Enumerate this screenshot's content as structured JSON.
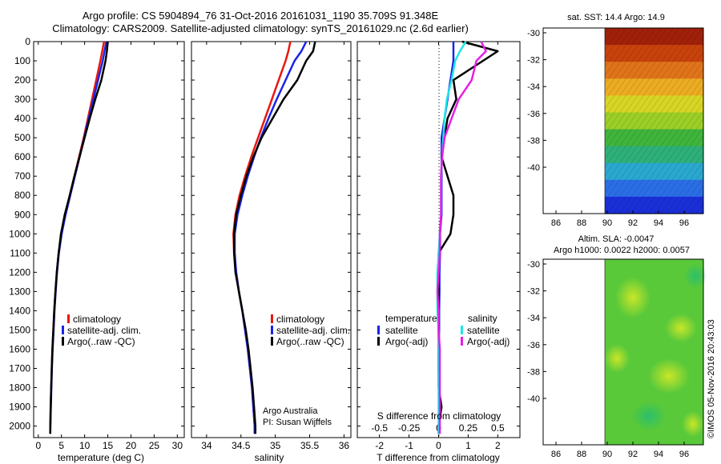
{
  "header": {
    "line1": "Argo profile: CS 5904894_76 31-Oct-2016 20161031_1190 35.709S 91.348E",
    "line2": "Climatology: CARS2009. Satellite-adjusted climatology: synTS_20161029.nc (2.6d earlier)"
  },
  "colors": {
    "climatology": "#e8170f",
    "satellite": "#1a24e8",
    "argo": "#000000",
    "salinity_sat": "#1ee6e6",
    "salinity_argo": "#e61ee6"
  },
  "legend": {
    "climatology": "climatology",
    "satellite_adj": "satellite-adj. clim.",
    "argo_raw": "Argo(..raw -QC)",
    "temperature_hdr": "temperature",
    "salinity_hdr": "salinity",
    "satellite": "satellite",
    "argo_adj": "Argo(-adj)"
  },
  "annotations": {
    "argo_australia": "Argo Australia",
    "pi": "PI: Susan Wijffels",
    "s_diff_label": "S difference from climatology",
    "stamp": "©IMOS 05-Nov-2016 20:43:03"
  },
  "maps": {
    "sst_title": "sat. SST: 14.4 Argo: 14.9",
    "sla_title1": "Altim. SLA: -0.0047",
    "sla_title2": "Argo h1000: 0.0022 h2000: 0.0057",
    "lat_ticks": [
      "-30",
      "-32",
      "-34",
      "-36",
      "-38",
      "-40"
    ],
    "lon_ticks": [
      "86",
      "88",
      "90",
      "92",
      "94",
      "96"
    ]
  },
  "chart_data": [
    {
      "type": "line",
      "title": "",
      "xlabel": "temperature (deg C)",
      "ylabel": "",
      "xlim": [
        -1,
        31.5
      ],
      "ylim": [
        2060,
        0
      ],
      "xticks": [
        "0",
        "5",
        "10",
        "15",
        "20",
        "25",
        "30"
      ],
      "yticks": [
        "0",
        "100",
        "200",
        "300",
        "400",
        "500",
        "600",
        "700",
        "800",
        "900",
        "1000",
        "1100",
        "1200",
        "1300",
        "1400",
        "1500",
        "1600",
        "1700",
        "1800",
        "1900",
        "2000"
      ],
      "depth": [
        0,
        50,
        100,
        200,
        300,
        400,
        500,
        600,
        700,
        800,
        900,
        1000,
        1100,
        1200,
        1300,
        1400,
        1500,
        1600,
        1700,
        1800,
        1900,
        2000,
        2040
      ],
      "series": [
        {
          "name": "climatology",
          "values": [
            14.2,
            13.8,
            13.4,
            12.5,
            11.6,
            10.7,
            9.8,
            8.8,
            7.8,
            6.8,
            5.8,
            5.0,
            4.4,
            4.0,
            3.7,
            3.45,
            3.25,
            3.05,
            2.9,
            2.78,
            2.68,
            2.6,
            2.58
          ]
        },
        {
          "name": "satellite-adj. clim.",
          "values": [
            14.7,
            14.3,
            13.9,
            12.9,
            11.9,
            10.9,
            9.9,
            8.9,
            7.9,
            6.9,
            5.9,
            5.05,
            4.45,
            4.05,
            3.75,
            3.5,
            3.3,
            3.1,
            2.95,
            2.82,
            2.72,
            2.62,
            2.6
          ]
        },
        {
          "name": "Argo(..raw -QC)",
          "values": [
            15.0,
            14.8,
            14.5,
            13.6,
            12.3,
            11.1,
            10.0,
            8.9,
            7.8,
            6.8,
            5.7,
            4.9,
            4.4,
            4.0,
            3.7,
            3.45,
            3.25,
            3.05,
            2.9,
            2.78,
            2.67,
            2.6,
            2.58
          ]
        }
      ]
    },
    {
      "type": "line",
      "title": "",
      "xlabel": "salinity",
      "ylabel": "",
      "xlim": [
        33.78,
        36.1
      ],
      "ylim": [
        2060,
        0
      ],
      "xticks": [
        "34",
        "34.5",
        "35",
        "35.5",
        "36"
      ],
      "depth": [
        0,
        50,
        100,
        200,
        300,
        400,
        500,
        600,
        700,
        800,
        900,
        1000,
        1100,
        1200,
        1300,
        1400,
        1500,
        1600,
        1700,
        1800,
        1900,
        2000,
        2040
      ],
      "series": [
        {
          "name": "climatology",
          "values": [
            35.22,
            35.19,
            35.15,
            35.05,
            34.95,
            34.85,
            34.75,
            34.65,
            34.56,
            34.48,
            34.42,
            34.39,
            34.4,
            34.43,
            34.47,
            34.52,
            34.56,
            34.6,
            34.63,
            34.66,
            34.68,
            34.7,
            34.7
          ]
        },
        {
          "name": "satellite-adj. clim.",
          "values": [
            35.45,
            35.38,
            35.28,
            35.15,
            35.02,
            34.9,
            34.79,
            34.69,
            34.6,
            34.52,
            34.45,
            34.41,
            34.41,
            34.43,
            34.47,
            34.52,
            34.56,
            34.6,
            34.63,
            34.66,
            34.68,
            34.7,
            34.7
          ]
        },
        {
          "name": "Argo(..raw -QC)",
          "values": [
            35.58,
            35.55,
            35.45,
            35.32,
            35.12,
            34.96,
            34.8,
            34.68,
            34.58,
            34.5,
            34.43,
            34.4,
            34.4,
            34.42,
            34.47,
            34.52,
            34.57,
            34.61,
            34.64,
            34.67,
            34.69,
            34.71,
            34.71
          ]
        }
      ]
    },
    {
      "type": "line",
      "title": "",
      "xlabel": "T difference from climatology",
      "ylabel": "",
      "xlim": [
        -2.75,
        2.75
      ],
      "ylim": [
        2060,
        0
      ],
      "xticks": [
        "-2",
        "-1",
        "0",
        "1",
        "2"
      ],
      "s_xticks": [
        "-0.5",
        "-0.25",
        "0",
        "0.25",
        "0.5"
      ],
      "depth": [
        0,
        50,
        100,
        200,
        300,
        400,
        500,
        600,
        700,
        800,
        900,
        1000,
        1100,
        1200,
        1300,
        1400,
        1500,
        1600,
        1700,
        1800,
        1900,
        2000,
        2040
      ],
      "series": [
        {
          "name": "T satellite",
          "values": [
            0.5,
            0.5,
            0.5,
            0.4,
            0.3,
            0.2,
            0.1,
            0.1,
            0.1,
            0.1,
            0.1,
            0.05,
            0.05,
            0.03,
            0.03,
            0.02,
            0.02,
            0.0,
            0.0,
            0.02,
            0.02,
            0.02,
            0.02
          ]
        },
        {
          "name": "T Argo(-adj)",
          "values": [
            0.8,
            2.0,
            1.5,
            0.5,
            0.6,
            0.3,
            0.2,
            0.1,
            0.3,
            0.5,
            0.5,
            0.4,
            0.0,
            0.0,
            0.0,
            0.0,
            0.0,
            0.0,
            0.0,
            0.0,
            0.1,
            0.0,
            0.0
          ]
        },
        {
          "name": "S satellite",
          "values": [
            0.23,
            0.18,
            0.14,
            0.11,
            0.07,
            0.05,
            0.04,
            0.03,
            0.02,
            0.02,
            0.02,
            0.01,
            0.0,
            -0.01,
            -0.01,
            -0.01,
            0.0,
            0.0,
            0.0,
            0.0,
            0.0,
            0.0,
            0.0
          ]
        },
        {
          "name": "S Argo(-adj)",
          "values": [
            0.36,
            0.4,
            0.32,
            0.28,
            0.17,
            0.11,
            0.05,
            0.03,
            0.02,
            0.02,
            0.02,
            0.01,
            0.01,
            0.0,
            -0.01,
            0.0,
            0.0,
            0.01,
            0.01,
            0.01,
            0.01,
            0.01,
            0.01
          ]
        }
      ]
    }
  ]
}
